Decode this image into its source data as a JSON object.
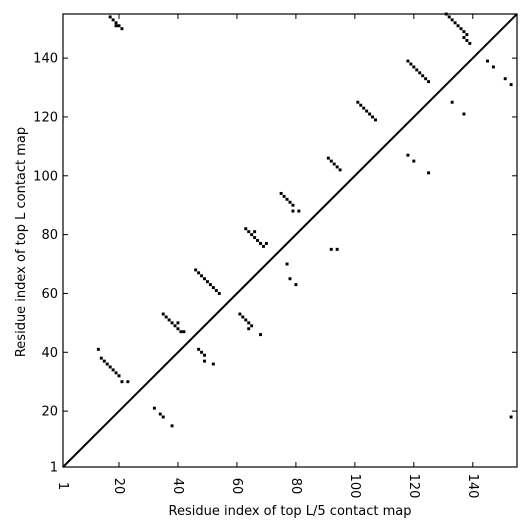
{
  "chart_data": {
    "type": "scatter",
    "title": "",
    "xlabel": "Residue index of top L/5 contact map",
    "ylabel": "Residue index of top L contact map",
    "xlim": [
      1,
      155
    ],
    "ylim": [
      1,
      155
    ],
    "xticks": [
      1,
      20,
      40,
      60,
      80,
      100,
      120,
      140
    ],
    "yticks": [
      1,
      20,
      40,
      60,
      80,
      100,
      120,
      140
    ],
    "diagonal": true,
    "grid": false,
    "marker": "square",
    "marker_color": "#000000",
    "series": [
      {
        "points": [
          [
            17,
            154
          ],
          [
            18,
            153
          ],
          [
            19,
            152
          ],
          [
            19,
            151
          ],
          [
            20,
            151
          ],
          [
            21,
            150
          ],
          [
            13,
            41
          ],
          [
            14,
            38
          ],
          [
            15,
            37
          ],
          [
            16,
            36
          ],
          [
            17,
            35
          ],
          [
            18,
            34
          ],
          [
            19,
            33
          ],
          [
            20,
            32
          ],
          [
            21,
            30
          ],
          [
            23,
            30
          ],
          [
            32,
            21
          ],
          [
            34,
            19
          ],
          [
            35,
            18
          ],
          [
            38,
            15
          ],
          [
            35,
            53
          ],
          [
            36,
            52
          ],
          [
            37,
            51
          ],
          [
            38,
            50
          ],
          [
            39,
            49
          ],
          [
            40,
            48
          ],
          [
            41,
            47
          ],
          [
            40,
            50
          ],
          [
            42,
            47
          ],
          [
            46,
            68
          ],
          [
            47,
            67
          ],
          [
            48,
            66
          ],
          [
            49,
            65
          ],
          [
            50,
            64
          ],
          [
            51,
            63
          ],
          [
            52,
            62
          ],
          [
            53,
            61
          ],
          [
            54,
            60
          ],
          [
            47,
            41
          ],
          [
            48,
            40
          ],
          [
            49,
            39
          ],
          [
            49,
            37
          ],
          [
            52,
            36
          ],
          [
            61,
            53
          ],
          [
            62,
            52
          ],
          [
            63,
            51
          ],
          [
            64,
            50
          ],
          [
            65,
            49
          ],
          [
            64,
            48
          ],
          [
            68,
            46
          ],
          [
            63,
            82
          ],
          [
            64,
            81
          ],
          [
            65,
            80
          ],
          [
            66,
            79
          ],
          [
            67,
            78
          ],
          [
            68,
            77
          ],
          [
            69,
            76
          ],
          [
            70,
            77
          ],
          [
            66,
            81
          ],
          [
            75,
            94
          ],
          [
            76,
            93
          ],
          [
            77,
            92
          ],
          [
            78,
            91
          ],
          [
            79,
            90
          ],
          [
            79,
            88
          ],
          [
            81,
            88
          ],
          [
            77,
            70
          ],
          [
            78,
            65
          ],
          [
            80,
            63
          ],
          [
            91,
            106
          ],
          [
            92,
            105
          ],
          [
            93,
            104
          ],
          [
            94,
            103
          ],
          [
            95,
            102
          ],
          [
            92,
            75
          ],
          [
            94,
            75
          ],
          [
            101,
            125
          ],
          [
            102,
            124
          ],
          [
            103,
            123
          ],
          [
            104,
            122
          ],
          [
            105,
            121
          ],
          [
            106,
            120
          ],
          [
            107,
            119
          ],
          [
            118,
            139
          ],
          [
            119,
            138
          ],
          [
            120,
            137
          ],
          [
            121,
            136
          ],
          [
            122,
            135
          ],
          [
            123,
            134
          ],
          [
            124,
            133
          ],
          [
            125,
            132
          ],
          [
            118,
            107
          ],
          [
            120,
            105
          ],
          [
            125,
            101
          ],
          [
            131,
            155
          ],
          [
            132,
            154
          ],
          [
            133,
            153
          ],
          [
            134,
            152
          ],
          [
            135,
            151
          ],
          [
            136,
            150
          ],
          [
            137,
            149
          ],
          [
            138,
            148
          ],
          [
            137,
            147
          ],
          [
            138,
            146
          ],
          [
            139,
            145
          ],
          [
            133,
            125
          ],
          [
            137,
            121
          ],
          [
            145,
            139
          ],
          [
            147,
            137
          ],
          [
            151,
            133
          ],
          [
            153,
            131
          ],
          [
            153,
            18
          ]
        ]
      }
    ]
  }
}
